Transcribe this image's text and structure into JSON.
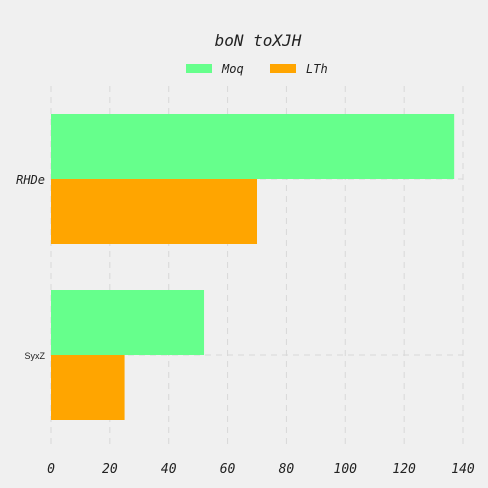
{
  "chart_data": {
    "type": "bar",
    "orientation": "horizontal",
    "title": "boN toXJH",
    "xlabel": "",
    "ylabel": "",
    "categories": [
      "RHDe",
      "SyxZ"
    ],
    "series": [
      {
        "name": "Moq",
        "values": [
          137,
          52
        ],
        "color": "#66ff8c"
      },
      {
        "name": "LTh",
        "values": [
          70,
          25
        ],
        "color": "#ffa500"
      }
    ],
    "xlim": [
      0,
      140
    ],
    "xticks": [
      "0",
      "20",
      "40",
      "60",
      "80",
      "100",
      "120",
      "140"
    ],
    "grid": true,
    "legend_position": "top-center"
  }
}
